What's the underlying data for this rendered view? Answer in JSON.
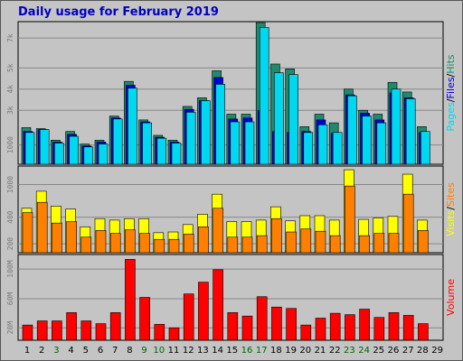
{
  "chart_data": {
    "title": "Daily usage for February 2019",
    "type": "bar",
    "days": [
      "1",
      "2",
      "3",
      "4",
      "5",
      "6",
      "7",
      "8",
      "9",
      "10",
      "11",
      "12",
      "13",
      "14",
      "15",
      "16",
      "17",
      "18",
      "19",
      "20",
      "21",
      "22",
      "23",
      "24",
      "25",
      "26",
      "27",
      "28",
      "29"
    ],
    "weekend_days": [
      "3",
      "9",
      "10",
      "16",
      "17",
      "23",
      "24"
    ],
    "colors": {
      "hits": "#1f8a6e",
      "files": "#0000e0",
      "pages": "#00d8f0",
      "sites": "#ff8000",
      "visits": "#ffff00",
      "volume": "#ff0000",
      "weekday_label": "#000000",
      "weekend_label": "#006600",
      "title": "#0000c0"
    },
    "panels": [
      {
        "name": "hits-files-pages",
        "ylim": [
          0,
          7400
        ],
        "ticks": [
          "1000",
          "3k",
          "4k",
          "5k",
          "7k"
        ],
        "tick_values": [
          1000,
          2800,
          3900,
          5000,
          6550
        ],
        "side_label": [
          "Pages",
          "/",
          "Files",
          "/",
          "Hits"
        ],
        "series": [
          {
            "name": "Hits",
            "color": "#1f8a6e",
            "values": [
              1900,
              1850,
              1250,
              1700,
              1050,
              1250,
              2500,
              4300,
              2300,
              1500,
              1250,
              3000,
              3450,
              4850,
              2600,
              2600,
              7350,
              5200,
              4950,
              1950,
              2600,
              2150,
              3900,
              2800,
              2600,
              4250,
              3750,
              1950,
              null
            ]
          },
          {
            "name": "Files",
            "color": "#0000e0",
            "values": [
              1700,
              1800,
              1150,
              1550,
              950,
              1150,
              2400,
              4100,
              2200,
              1400,
              1150,
              2850,
              3300,
              4500,
              2350,
              2400,
              2800,
              1700,
              1650,
              1700,
              2300,
              1600,
              3600,
              2650,
              2300,
              3700,
              3450,
              1650,
              null
            ]
          },
          {
            "name": "Pages",
            "color": "#00d8f0",
            "values": [
              1650,
              1800,
              1100,
              1450,
              900,
              1050,
              2350,
              3950,
              2150,
              1350,
              1100,
              2700,
              3300,
              4150,
              2200,
              2200,
              7100,
              4750,
              4650,
              1650,
              2050,
              1650,
              3550,
              2500,
              2150,
              3900,
              3400,
              1700,
              null
            ]
          }
        ]
      },
      {
        "name": "visits-sites",
        "ylim": [
          0,
          1170
        ],
        "ticks": [
          "200",
          "400",
          "1000"
        ],
        "tick_values": [
          120,
          480,
          920
        ],
        "side_label": [
          "Visits",
          "/",
          "Sites"
        ],
        "series": [
          {
            "name": "Visits",
            "color": "#ffff00",
            "values": [
              600,
              830,
              630,
              590,
              350,
              460,
              440,
              460,
              460,
              270,
              280,
              380,
              520,
              790,
              420,
              420,
              440,
              620,
              430,
              500,
              500,
              440,
              1120,
              450,
              470,
              490,
              1060,
              440,
              null
            ]
          },
          {
            "name": "Sites",
            "color": "#ff8000",
            "values": [
              540,
              680,
              400,
              420,
              210,
              300,
              260,
              310,
              260,
              180,
              180,
              250,
              350,
              600,
              210,
              210,
              230,
              460,
              280,
              320,
              290,
              230,
              900,
              230,
              260,
              260,
              790,
              300,
              null
            ]
          }
        ]
      },
      {
        "name": "volume",
        "ylim": [
          0,
          124
        ],
        "ticks": [
          "20M",
          "60M",
          "100M"
        ],
        "tick_values": [
          18,
          60,
          103
        ],
        "side_label": [
          "Volume"
        ],
        "series": [
          {
            "name": "Volume",
            "color": "#ff0000",
            "values": [
              22,
              28,
              28,
              40,
              28,
              24,
              40,
              117,
              62,
              23,
              18,
              67,
              84,
              102,
              40,
              35,
              63,
              48,
              46,
              22,
              32,
              39,
              37,
              45,
              33,
              40,
              36,
              24,
              null
            ]
          }
        ]
      }
    ]
  }
}
